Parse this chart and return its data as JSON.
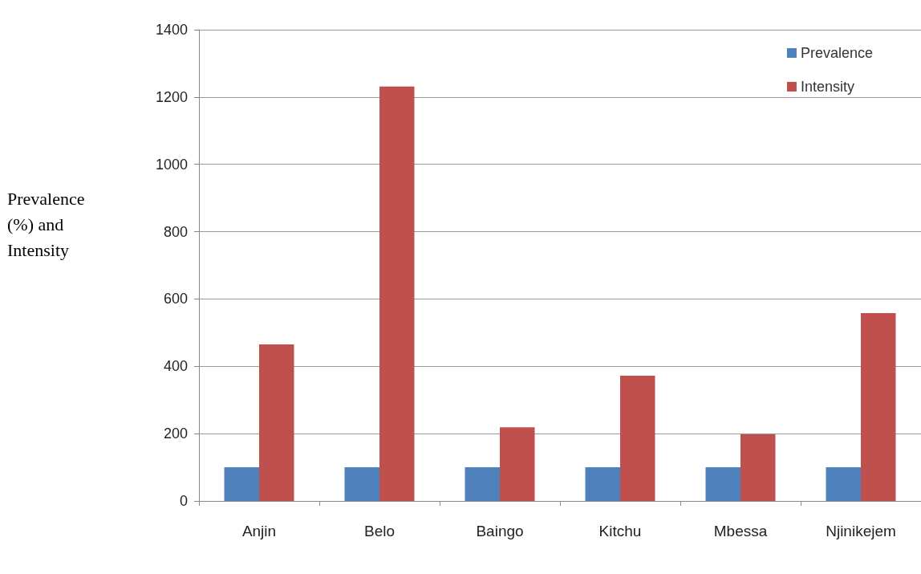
{
  "chart_data": {
    "type": "bar",
    "ylabel": "Prevalence (%) and Intensity",
    "categories": [
      "Anjin",
      "Belo",
      "Baingo",
      "Kitchu",
      "Mbessa",
      "Njinikejem"
    ],
    "series": [
      {
        "name": "Prevalence",
        "color": "#4f81bd",
        "values": [
          100,
          100,
          100,
          100,
          100,
          100
        ]
      },
      {
        "name": "Intensity",
        "color": "#c0504d",
        "values": [
          465,
          1231,
          219,
          372,
          198,
          558
        ]
      }
    ],
    "ylim": [
      0,
      1400
    ],
    "yticks": [
      0,
      200,
      400,
      600,
      800,
      1000,
      1200,
      1400
    ],
    "grid": "y",
    "legend": "top right"
  }
}
